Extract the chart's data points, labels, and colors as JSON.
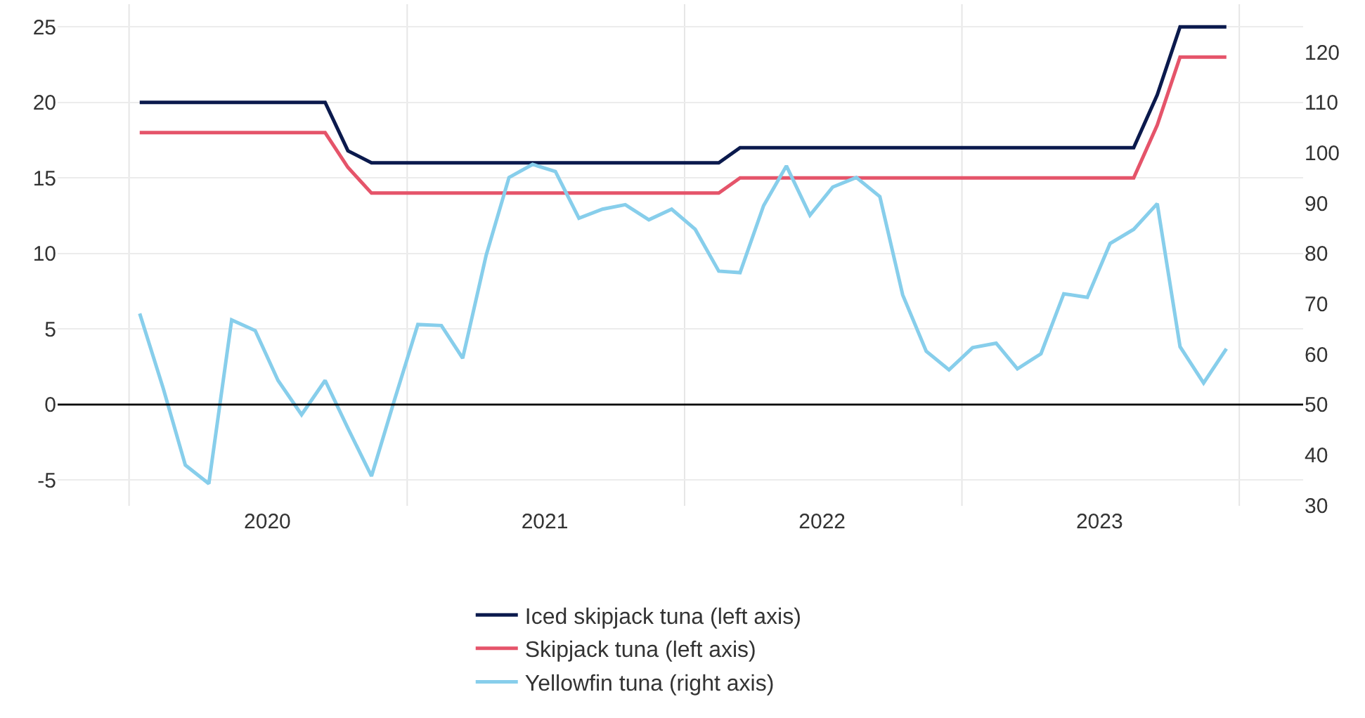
{
  "chart_data": {
    "type": "line",
    "x": [
      "2020-01-15",
      "2020-02-15",
      "2020-03-15",
      "2020-04-15",
      "2020-05-15",
      "2020-06-15",
      "2020-07-15",
      "2020-08-15",
      "2020-09-15",
      "2020-10-15",
      "2020-11-15",
      "2020-12-15",
      "2021-01-15",
      "2021-02-15",
      "2021-03-15",
      "2021-04-15",
      "2021-05-15",
      "2021-06-15",
      "2021-07-15",
      "2021-08-15",
      "2021-09-15",
      "2021-10-15",
      "2021-11-15",
      "2021-12-15",
      "2022-01-15",
      "2022-02-15",
      "2022-03-15",
      "2022-04-15",
      "2022-05-15",
      "2022-06-15",
      "2022-07-15",
      "2022-08-15",
      "2022-09-15",
      "2022-10-15",
      "2022-11-15",
      "2022-12-15",
      "2023-01-15",
      "2023-02-15",
      "2023-03-15",
      "2023-04-15",
      "2023-05-15",
      "2023-06-15",
      "2023-07-15",
      "2023-08-15",
      "2023-09-15",
      "2023-10-15",
      "2023-11-15",
      "2023-12-15"
    ],
    "series": [
      {
        "name": "Iced skipjack tuna (left axis)",
        "color": "#0b1a4d",
        "values": [
          20,
          20,
          20,
          20,
          20,
          20,
          20,
          20,
          20,
          16.8,
          16,
          16,
          16,
          16,
          16,
          16,
          16,
          16,
          16,
          16,
          16,
          16,
          16,
          16,
          16,
          16,
          17,
          17,
          17,
          17,
          17,
          17,
          17,
          17,
          17,
          17,
          17,
          17,
          17,
          17,
          17,
          17,
          17,
          17,
          20.5,
          25,
          25,
          25
        ]
      },
      {
        "name": "Skipjack tuna (left axis)",
        "color": "#e5546a",
        "values": [
          18,
          18,
          18,
          18,
          18,
          18,
          18,
          18,
          18,
          15.7,
          14,
          14,
          14,
          14,
          14,
          14,
          14,
          14,
          14,
          14,
          14,
          14,
          14,
          14,
          14,
          14,
          15,
          15,
          15,
          15,
          15,
          15,
          15,
          15,
          15,
          15,
          15,
          15,
          15,
          15,
          15,
          15,
          15,
          15,
          18.5,
          23,
          23,
          23
        ]
      },
      {
        "name": "Yellowfin tuna (right axis)",
        "color": "#87ceeb",
        "axis": "y2",
        "values": [
          68.1,
          53.2,
          38.0,
          34.3,
          66.8,
          64.7,
          54.8,
          48.0,
          54.8,
          45.3,
          35.8,
          50.8,
          65.9,
          65.7,
          59.2,
          79.7,
          95.1,
          97.7,
          96.3,
          87.0,
          88.8,
          89.7,
          86.7,
          88.8,
          84.8,
          76.5,
          76.2,
          89.5,
          97.4,
          87.6,
          93.2,
          95.1,
          91.3,
          71.8,
          60.6,
          56.9,
          61.3,
          62.2,
          57.1,
          60.1,
          72.0,
          71.3,
          82.0,
          84.8,
          89.9,
          61.5,
          54.3,
          61.1
        ]
      }
    ],
    "xlim": [
      "2019-09-29",
      "2024-03-25"
    ],
    "xticks": [
      {
        "value": "2020-01-01",
        "label": null
      },
      {
        "value": "2020-07-01",
        "label": "2020"
      },
      {
        "value": "2021-01-01",
        "label": null
      },
      {
        "value": "2021-07-01",
        "label": "2021"
      },
      {
        "value": "2022-01-01",
        "label": null
      },
      {
        "value": "2022-07-01",
        "label": "2022"
      },
      {
        "value": "2023-01-01",
        "label": null
      },
      {
        "value": "2023-07-01",
        "label": "2023"
      },
      {
        "value": "2024-01-01",
        "label": null
      }
    ],
    "ylim": [
      -6.7,
      26.5
    ],
    "yticks": [
      -5,
      0,
      5,
      10,
      15,
      20,
      25
    ],
    "y2lim": [
      29.9,
      129.5
    ],
    "y2ticks": [
      30,
      40,
      50,
      60,
      70,
      80,
      90,
      100,
      110,
      120
    ],
    "ref_lines": [
      {
        "axis": "y",
        "value": 0,
        "color": "#000000"
      }
    ],
    "grid": true,
    "legend": "bottom",
    "marker": "none",
    "line_style": "solid"
  }
}
